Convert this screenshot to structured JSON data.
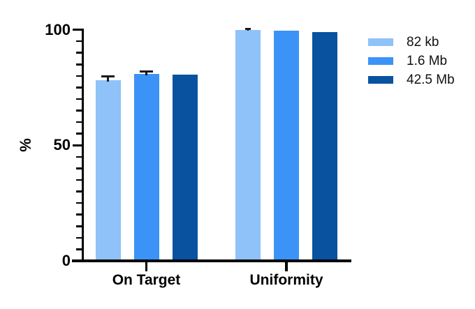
{
  "chart_data": {
    "type": "bar",
    "title": "",
    "ylabel": "%",
    "xlabel": "",
    "categories": [
      "On Target",
      "Uniformity"
    ],
    "series": [
      {
        "name": "82 kb",
        "color": "#8FC2F8",
        "values": [
          78.0,
          100.0
        ],
        "errors": [
          1.8,
          0.4
        ]
      },
      {
        "name": "1.6 Mb",
        "color": "#3B93F7",
        "values": [
          80.7,
          99.4
        ],
        "errors": [
          1.3,
          0
        ]
      },
      {
        "name": "42.5 Mb",
        "color": "#0852A0",
        "values": [
          80.5,
          99.0
        ],
        "errors": [
          0,
          0
        ]
      }
    ],
    "ylim": [
      0,
      100
    ],
    "yticks_major": [
      0,
      50,
      100
    ],
    "ytick_minor_step": 5,
    "grid": false,
    "legend_position": "right",
    "axis_color": "#000000",
    "text_color": "#000000",
    "background_color": "#ffffff"
  }
}
